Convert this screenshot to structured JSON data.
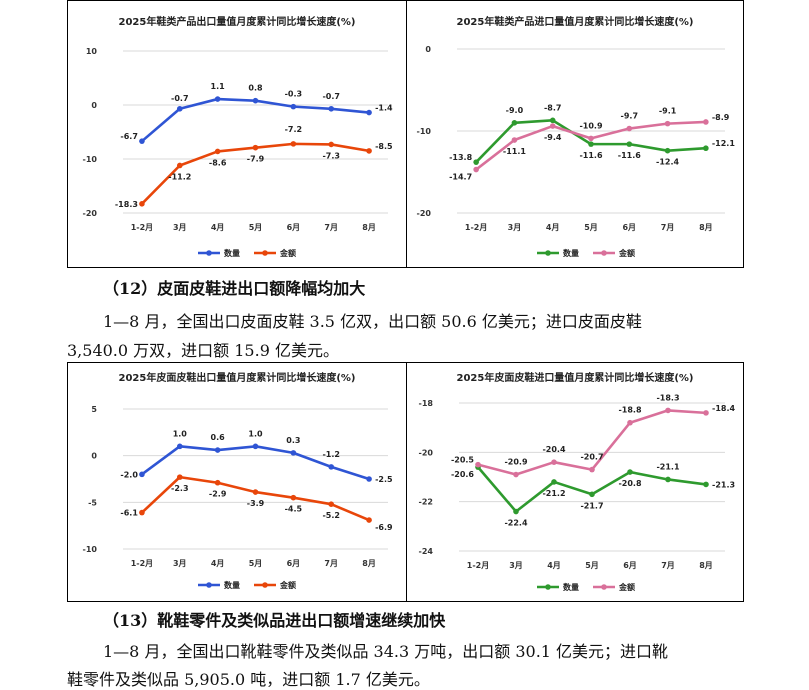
{
  "section12": {
    "heading": "（12）皮面皮鞋进出口额降幅均加大",
    "line1": "1—8 月，全国出口皮面皮鞋 3.5 亿双，出口额 50.6 亿美元；进口皮面皮鞋",
    "line2": "3,540.0 万双，进口额 15.9 亿美元。"
  },
  "section13": {
    "heading": "（13）靴鞋零件及类似品进出口额增速继续加快",
    "line1": "1—8 月，全国出口靴鞋零件及类似品 34.3 万吨，出口额 30.1 亿美元；进口靴",
    "line2": "鞋零件及类似品 5,905.0 吨，进口额 1.7 亿美元。"
  },
  "chart_data": [
    {
      "type": "line",
      "title": "2025年鞋类产品出口量值月度累计同比增长速度(%)",
      "categories": [
        "1-2月",
        "3月",
        "4月",
        "5月",
        "6月",
        "7月",
        "8月"
      ],
      "ylim": [
        -20,
        10
      ],
      "yticks": [
        "-20",
        "-10",
        "0",
        "10"
      ],
      "series": [
        {
          "name": "数量",
          "color": "#2F55D4",
          "values": [
            -6.7,
            -0.7,
            1.1,
            0.8,
            -0.3,
            -0.7,
            -1.4
          ],
          "labels": [
            "-6.7",
            "-0.7",
            "1.1",
            "0.8",
            "-0.3",
            "-0.7",
            "-1.4"
          ]
        },
        {
          "name": "金额",
          "color": "#E8460A",
          "values": [
            -18.3,
            -11.2,
            -8.6,
            -7.9,
            -7.2,
            -7.3,
            -8.5
          ],
          "labels": [
            "-18.3",
            "-11.2",
            "-8.6",
            "-7.9",
            "-7.2",
            "-7.3",
            "-8.5"
          ]
        }
      ]
    },
    {
      "type": "line",
      "title": "2025年鞋类产品进口量值月度累计同比增长速度(%)",
      "categories": [
        "1-2月",
        "3月",
        "4月",
        "5月",
        "6月",
        "7月",
        "8月"
      ],
      "ylim": [
        -20,
        0
      ],
      "yticks": [
        "-20",
        "-10",
        "0"
      ],
      "series": [
        {
          "name": "数量",
          "color": "#2E9A2E",
          "values": [
            -13.8,
            -9.0,
            -8.7,
            -11.6,
            -11.6,
            -12.4,
            -12.1
          ],
          "labels": [
            "-13.8",
            "-9.0",
            "-8.7",
            "-11.6",
            "-11.6",
            "-12.4",
            "-12.1"
          ]
        },
        {
          "name": "金额",
          "color": "#D9709A",
          "values": [
            -14.7,
            -11.1,
            -9.4,
            -10.9,
            -9.7,
            -9.1,
            -8.9
          ],
          "labels": [
            "-14.7",
            "-11.1",
            "-9.4",
            "-10.9",
            "-9.7",
            "-9.1",
            "-8.9"
          ]
        }
      ]
    },
    {
      "type": "line",
      "title": "2025年皮面皮鞋出口量值月度累计同比增长速度(%)",
      "categories": [
        "1-2月",
        "3月",
        "4月",
        "5月",
        "6月",
        "7月",
        "8月"
      ],
      "ylim": [
        -10,
        5
      ],
      "yticks": [
        "-10",
        "-5",
        "0",
        "5"
      ],
      "series": [
        {
          "name": "数量",
          "color": "#2F55D4",
          "values": [
            -2.0,
            1.0,
            0.6,
            1.0,
            0.3,
            -1.2,
            -2.5
          ],
          "labels": [
            "-2.0",
            "1.0",
            "0.6",
            "1.0",
            "0.3",
            "-1.2",
            "-2.5"
          ]
        },
        {
          "name": "金额",
          "color": "#E8460A",
          "values": [
            -6.1,
            -2.3,
            -2.9,
            -3.9,
            -4.5,
            -5.2,
            -6.9
          ],
          "labels": [
            "-6.1",
            "-2.3",
            "-2.9",
            "-3.9",
            "-4.5",
            "-5.2",
            "-6.9"
          ]
        }
      ]
    },
    {
      "type": "line",
      "title": "2025年皮面皮鞋进口量值月度累计同比增长速度(%)",
      "categories": [
        "1-2月",
        "3月",
        "4月",
        "5月",
        "6月",
        "7月",
        "8月"
      ],
      "ylim": [
        -24,
        -18
      ],
      "yticks": [
        "-24",
        "-22",
        "-20",
        "-18"
      ],
      "series": [
        {
          "name": "数量",
          "color": "#2E9A2E",
          "values": [
            -20.6,
            -22.4,
            -21.2,
            -21.7,
            -20.8,
            -21.1,
            -21.3
          ],
          "labels": [
            "-20.6",
            "-22.4",
            "-21.2",
            "-21.7",
            "-20.8",
            "-21.1",
            "-21.3"
          ]
        },
        {
          "name": "金额",
          "color": "#D9709A",
          "values": [
            -20.5,
            -20.9,
            -20.4,
            -20.7,
            -18.8,
            -18.3,
            -18.4
          ],
          "labels": [
            "-20.5",
            "-20.9",
            "-20.4",
            "-20.7",
            "-18.8",
            "-18.3",
            "-18.4"
          ]
        }
      ]
    }
  ]
}
